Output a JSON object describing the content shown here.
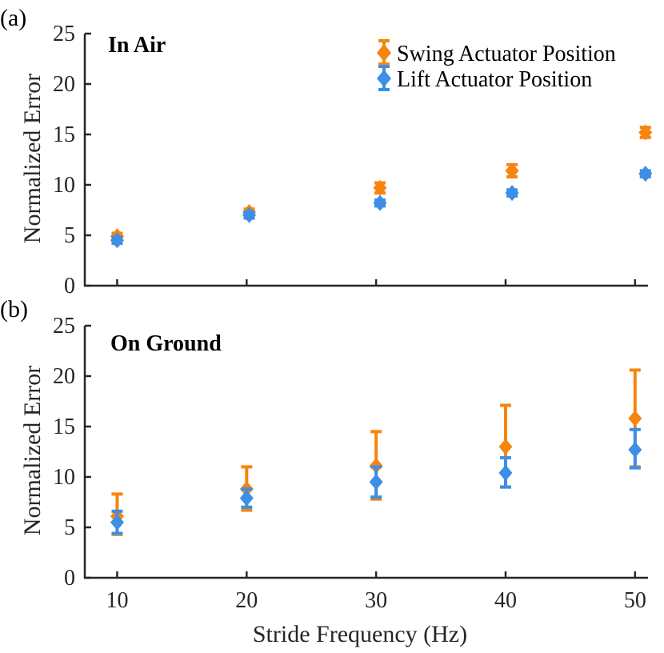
{
  "colors": {
    "swing": "#f7850d",
    "lift": "#3d8ee6",
    "axis": "#262626"
  },
  "x_axis_label": "Stride Frequency (Hz)",
  "y_axis_label": "Normalized Error",
  "legend": {
    "swing": "Swing Actuator Position",
    "lift": "Lift Actuator Position"
  },
  "chart_data": [
    {
      "type": "scatter",
      "panel_tag": "(a)",
      "title": "In Air",
      "xlabel": "",
      "ylabel": "Normalized Error",
      "xlim": [
        7.5,
        51
      ],
      "ylim": [
        0,
        25
      ],
      "x_ticks": [
        10,
        20,
        30,
        40,
        50
      ],
      "y_ticks": [
        0,
        5,
        10,
        15,
        20,
        25
      ],
      "x_tick_labels_visible": false,
      "legend_position": "top-right",
      "series": [
        {
          "name": "Swing Actuator Position",
          "color_key": "swing",
          "x": [
            10,
            20.2,
            30.3,
            40.5,
            50.8
          ],
          "y": [
            4.9,
            7.3,
            9.7,
            11.4,
            15.2
          ],
          "err_low": [
            0.3,
            0.3,
            0.5,
            0.6,
            0.5
          ],
          "err_high": [
            0.3,
            0.3,
            0.5,
            0.6,
            0.5
          ]
        },
        {
          "name": "Lift Actuator Position",
          "color_key": "lift",
          "x": [
            10,
            20.2,
            30.3,
            40.5,
            50.8
          ],
          "y": [
            4.5,
            7.0,
            8.2,
            9.2,
            11.1
          ],
          "err_low": [
            0.3,
            0.3,
            0.3,
            0.3,
            0.3
          ],
          "err_high": [
            0.3,
            0.3,
            0.3,
            0.3,
            0.3
          ]
        }
      ]
    },
    {
      "type": "scatter",
      "panel_tag": "(b)",
      "title": "On Ground",
      "xlabel": "Stride Frequency (Hz)",
      "ylabel": "Normalized Error",
      "xlim": [
        7.5,
        51
      ],
      "ylim": [
        0,
        25
      ],
      "x_ticks": [
        10,
        20,
        30,
        40,
        50
      ],
      "y_ticks": [
        0,
        5,
        10,
        15,
        20,
        25
      ],
      "x_tick_labels_visible": true,
      "series": [
        {
          "name": "Swing Actuator Position",
          "color_key": "swing",
          "x": [
            10,
            20,
            30,
            40,
            50
          ],
          "y": [
            6.1,
            8.8,
            11.1,
            13.0,
            15.8
          ],
          "err_low": [
            1.8,
            2.1,
            3.3,
            4.0,
            4.8
          ],
          "err_high": [
            2.2,
            2.2,
            3.4,
            4.1,
            4.8
          ]
        },
        {
          "name": "Lift Actuator Position",
          "color_key": "lift",
          "x": [
            10,
            20,
            30,
            40,
            50
          ],
          "y": [
            5.5,
            7.9,
            9.5,
            10.4,
            12.7
          ],
          "err_low": [
            1.1,
            0.9,
            1.5,
            1.4,
            1.8
          ],
          "err_high": [
            1.1,
            0.9,
            1.5,
            1.5,
            2.0
          ]
        }
      ]
    }
  ]
}
